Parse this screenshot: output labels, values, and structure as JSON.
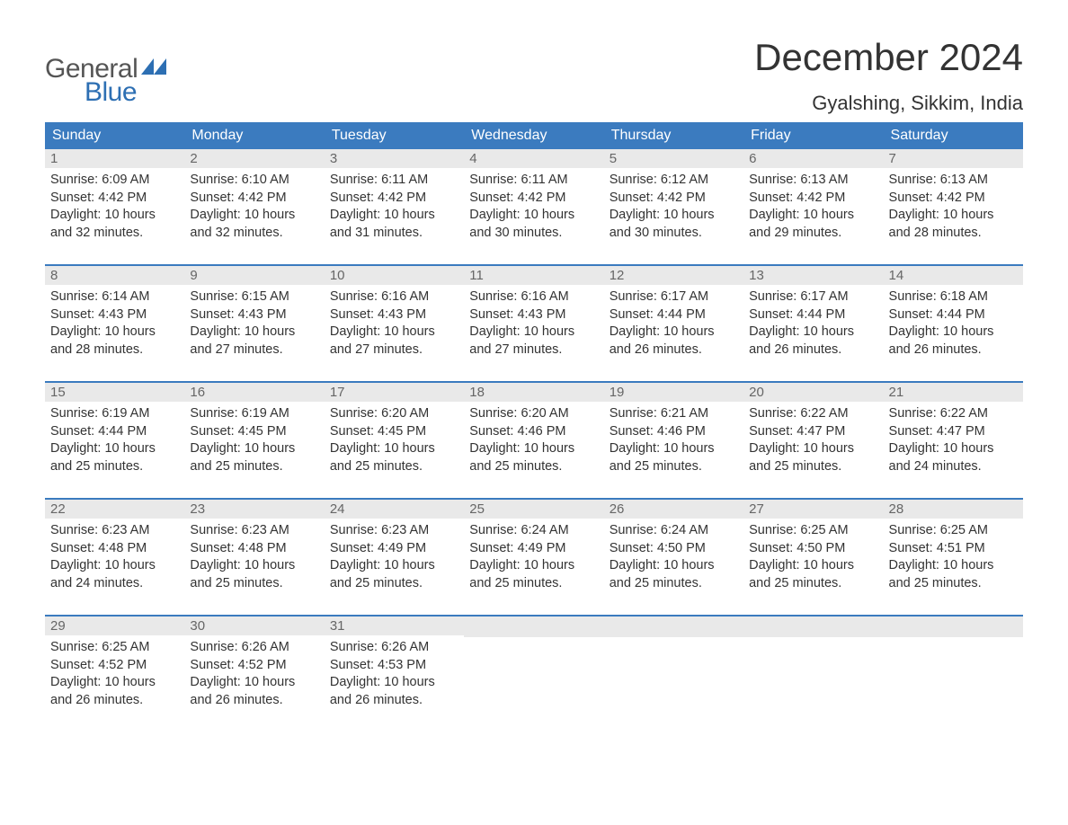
{
  "logo": {
    "line1": "General",
    "line2": "Blue"
  },
  "title": "December 2024",
  "location": "Gyalshing, Sikkim, India",
  "colors": {
    "header_bg": "#3b7bbf",
    "header_text": "#ffffff",
    "daynum_bg": "#e9e9e9",
    "daynum_text": "#666666",
    "body_text": "#333333",
    "accent": "#2d6fb3"
  },
  "day_names": [
    "Sunday",
    "Monday",
    "Tuesday",
    "Wednesday",
    "Thursday",
    "Friday",
    "Saturday"
  ],
  "weeks": [
    [
      {
        "n": "1",
        "sunrise": "Sunrise: 6:09 AM",
        "sunset": "Sunset: 4:42 PM",
        "daylight1": "Daylight: 10 hours",
        "daylight2": "and 32 minutes."
      },
      {
        "n": "2",
        "sunrise": "Sunrise: 6:10 AM",
        "sunset": "Sunset: 4:42 PM",
        "daylight1": "Daylight: 10 hours",
        "daylight2": "and 32 minutes."
      },
      {
        "n": "3",
        "sunrise": "Sunrise: 6:11 AM",
        "sunset": "Sunset: 4:42 PM",
        "daylight1": "Daylight: 10 hours",
        "daylight2": "and 31 minutes."
      },
      {
        "n": "4",
        "sunrise": "Sunrise: 6:11 AM",
        "sunset": "Sunset: 4:42 PM",
        "daylight1": "Daylight: 10 hours",
        "daylight2": "and 30 minutes."
      },
      {
        "n": "5",
        "sunrise": "Sunrise: 6:12 AM",
        "sunset": "Sunset: 4:42 PM",
        "daylight1": "Daylight: 10 hours",
        "daylight2": "and 30 minutes."
      },
      {
        "n": "6",
        "sunrise": "Sunrise: 6:13 AM",
        "sunset": "Sunset: 4:42 PM",
        "daylight1": "Daylight: 10 hours",
        "daylight2": "and 29 minutes."
      },
      {
        "n": "7",
        "sunrise": "Sunrise: 6:13 AM",
        "sunset": "Sunset: 4:42 PM",
        "daylight1": "Daylight: 10 hours",
        "daylight2": "and 28 minutes."
      }
    ],
    [
      {
        "n": "8",
        "sunrise": "Sunrise: 6:14 AM",
        "sunset": "Sunset: 4:43 PM",
        "daylight1": "Daylight: 10 hours",
        "daylight2": "and 28 minutes."
      },
      {
        "n": "9",
        "sunrise": "Sunrise: 6:15 AM",
        "sunset": "Sunset: 4:43 PM",
        "daylight1": "Daylight: 10 hours",
        "daylight2": "and 27 minutes."
      },
      {
        "n": "10",
        "sunrise": "Sunrise: 6:16 AM",
        "sunset": "Sunset: 4:43 PM",
        "daylight1": "Daylight: 10 hours",
        "daylight2": "and 27 minutes."
      },
      {
        "n": "11",
        "sunrise": "Sunrise: 6:16 AM",
        "sunset": "Sunset: 4:43 PM",
        "daylight1": "Daylight: 10 hours",
        "daylight2": "and 27 minutes."
      },
      {
        "n": "12",
        "sunrise": "Sunrise: 6:17 AM",
        "sunset": "Sunset: 4:44 PM",
        "daylight1": "Daylight: 10 hours",
        "daylight2": "and 26 minutes."
      },
      {
        "n": "13",
        "sunrise": "Sunrise: 6:17 AM",
        "sunset": "Sunset: 4:44 PM",
        "daylight1": "Daylight: 10 hours",
        "daylight2": "and 26 minutes."
      },
      {
        "n": "14",
        "sunrise": "Sunrise: 6:18 AM",
        "sunset": "Sunset: 4:44 PM",
        "daylight1": "Daylight: 10 hours",
        "daylight2": "and 26 minutes."
      }
    ],
    [
      {
        "n": "15",
        "sunrise": "Sunrise: 6:19 AM",
        "sunset": "Sunset: 4:44 PM",
        "daylight1": "Daylight: 10 hours",
        "daylight2": "and 25 minutes."
      },
      {
        "n": "16",
        "sunrise": "Sunrise: 6:19 AM",
        "sunset": "Sunset: 4:45 PM",
        "daylight1": "Daylight: 10 hours",
        "daylight2": "and 25 minutes."
      },
      {
        "n": "17",
        "sunrise": "Sunrise: 6:20 AM",
        "sunset": "Sunset: 4:45 PM",
        "daylight1": "Daylight: 10 hours",
        "daylight2": "and 25 minutes."
      },
      {
        "n": "18",
        "sunrise": "Sunrise: 6:20 AM",
        "sunset": "Sunset: 4:46 PM",
        "daylight1": "Daylight: 10 hours",
        "daylight2": "and 25 minutes."
      },
      {
        "n": "19",
        "sunrise": "Sunrise: 6:21 AM",
        "sunset": "Sunset: 4:46 PM",
        "daylight1": "Daylight: 10 hours",
        "daylight2": "and 25 minutes."
      },
      {
        "n": "20",
        "sunrise": "Sunrise: 6:22 AM",
        "sunset": "Sunset: 4:47 PM",
        "daylight1": "Daylight: 10 hours",
        "daylight2": "and 25 minutes."
      },
      {
        "n": "21",
        "sunrise": "Sunrise: 6:22 AM",
        "sunset": "Sunset: 4:47 PM",
        "daylight1": "Daylight: 10 hours",
        "daylight2": "and 24 minutes."
      }
    ],
    [
      {
        "n": "22",
        "sunrise": "Sunrise: 6:23 AM",
        "sunset": "Sunset: 4:48 PM",
        "daylight1": "Daylight: 10 hours",
        "daylight2": "and 24 minutes."
      },
      {
        "n": "23",
        "sunrise": "Sunrise: 6:23 AM",
        "sunset": "Sunset: 4:48 PM",
        "daylight1": "Daylight: 10 hours",
        "daylight2": "and 25 minutes."
      },
      {
        "n": "24",
        "sunrise": "Sunrise: 6:23 AM",
        "sunset": "Sunset: 4:49 PM",
        "daylight1": "Daylight: 10 hours",
        "daylight2": "and 25 minutes."
      },
      {
        "n": "25",
        "sunrise": "Sunrise: 6:24 AM",
        "sunset": "Sunset: 4:49 PM",
        "daylight1": "Daylight: 10 hours",
        "daylight2": "and 25 minutes."
      },
      {
        "n": "26",
        "sunrise": "Sunrise: 6:24 AM",
        "sunset": "Sunset: 4:50 PM",
        "daylight1": "Daylight: 10 hours",
        "daylight2": "and 25 minutes."
      },
      {
        "n": "27",
        "sunrise": "Sunrise: 6:25 AM",
        "sunset": "Sunset: 4:50 PM",
        "daylight1": "Daylight: 10 hours",
        "daylight2": "and 25 minutes."
      },
      {
        "n": "28",
        "sunrise": "Sunrise: 6:25 AM",
        "sunset": "Sunset: 4:51 PM",
        "daylight1": "Daylight: 10 hours",
        "daylight2": "and 25 minutes."
      }
    ],
    [
      {
        "n": "29",
        "sunrise": "Sunrise: 6:25 AM",
        "sunset": "Sunset: 4:52 PM",
        "daylight1": "Daylight: 10 hours",
        "daylight2": "and 26 minutes."
      },
      {
        "n": "30",
        "sunrise": "Sunrise: 6:26 AM",
        "sunset": "Sunset: 4:52 PM",
        "daylight1": "Daylight: 10 hours",
        "daylight2": "and 26 minutes."
      },
      {
        "n": "31",
        "sunrise": "Sunrise: 6:26 AM",
        "sunset": "Sunset: 4:53 PM",
        "daylight1": "Daylight: 10 hours",
        "daylight2": "and 26 minutes."
      },
      {
        "empty": true
      },
      {
        "empty": true
      },
      {
        "empty": true
      },
      {
        "empty": true
      }
    ]
  ]
}
